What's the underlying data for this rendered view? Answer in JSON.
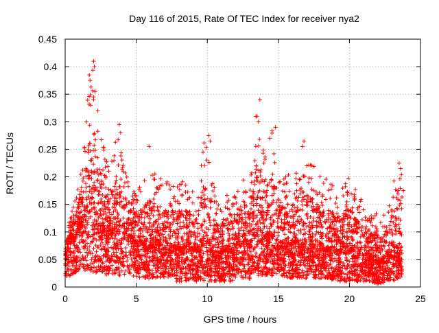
{
  "chart_data": {
    "type": "scatter",
    "title": "Day 116 of 2015, Rate Of TEC Index for receiver nya2",
    "xlabel": "GPS time / hours",
    "ylabel": "ROTI / TECUs",
    "xlim": [
      0,
      25
    ],
    "ylim": [
      0,
      0.45
    ],
    "x_ticks": [
      "0",
      "5",
      "10",
      "15",
      "20",
      "25"
    ],
    "y_ticks": [
      "0",
      "0.05",
      "0.1",
      "0.15",
      "0.2",
      "0.25",
      "0.3",
      "0.35",
      "0.4",
      "0.45"
    ],
    "grid": true,
    "marker": "+",
    "color": "#ff0000",
    "envelope": {
      "x": [
        0.0,
        0.3,
        0.6,
        1.0,
        1.4,
        1.7,
        2.0,
        2.2,
        2.6,
        3.0,
        3.4,
        3.8,
        4.2,
        4.6,
        5.0,
        5.4,
        5.8,
        6.2,
        6.6,
        7.0,
        7.4,
        7.8,
        8.2,
        8.6,
        9.0,
        9.4,
        9.8,
        10.2,
        10.6,
        11.0,
        11.4,
        11.8,
        12.2,
        12.6,
        13.0,
        13.4,
        13.8,
        14.2,
        14.6,
        15.0,
        15.4,
        15.8,
        16.2,
        16.6,
        17.0,
        17.4,
        17.8,
        18.2,
        18.6,
        19.0,
        19.4,
        19.8,
        20.2,
        20.6,
        21.0,
        21.4,
        21.8,
        22.2,
        22.6,
        23.0,
        23.4,
        23.7
      ],
      "upper": [
        0.09,
        0.12,
        0.15,
        0.2,
        0.28,
        0.38,
        0.41,
        0.33,
        0.27,
        0.22,
        0.26,
        0.29,
        0.22,
        0.2,
        0.18,
        0.19,
        0.21,
        0.22,
        0.2,
        0.19,
        0.21,
        0.18,
        0.2,
        0.19,
        0.18,
        0.2,
        0.27,
        0.25,
        0.16,
        0.15,
        0.17,
        0.16,
        0.2,
        0.21,
        0.18,
        0.33,
        0.27,
        0.27,
        0.29,
        0.22,
        0.2,
        0.21,
        0.2,
        0.26,
        0.22,
        0.23,
        0.2,
        0.21,
        0.19,
        0.18,
        0.17,
        0.21,
        0.19,
        0.17,
        0.15,
        0.13,
        0.14,
        0.12,
        0.15,
        0.18,
        0.22,
        0.21
      ],
      "median": [
        0.05,
        0.07,
        0.08,
        0.1,
        0.12,
        0.13,
        0.13,
        0.11,
        0.1,
        0.09,
        0.1,
        0.1,
        0.09,
        0.08,
        0.07,
        0.07,
        0.07,
        0.07,
        0.07,
        0.06,
        0.07,
        0.06,
        0.06,
        0.07,
        0.06,
        0.06,
        0.08,
        0.07,
        0.05,
        0.06,
        0.06,
        0.06,
        0.07,
        0.08,
        0.07,
        0.09,
        0.09,
        0.08,
        0.08,
        0.07,
        0.07,
        0.07,
        0.07,
        0.07,
        0.07,
        0.07,
        0.07,
        0.06,
        0.06,
        0.06,
        0.06,
        0.06,
        0.06,
        0.05,
        0.05,
        0.05,
        0.04,
        0.04,
        0.05,
        0.06,
        0.06,
        0.06
      ],
      "lower": [
        0.02,
        0.02,
        0.025,
        0.03,
        0.03,
        0.03,
        0.025,
        0.025,
        0.025,
        0.02,
        0.02,
        0.02,
        0.02,
        0.02,
        0.015,
        0.015,
        0.015,
        0.015,
        0.015,
        0.015,
        0.015,
        0.01,
        0.01,
        0.01,
        0.01,
        0.01,
        0.01,
        0.01,
        0.01,
        0.01,
        0.01,
        0.01,
        0.015,
        0.015,
        0.015,
        0.02,
        0.02,
        0.02,
        0.02,
        0.02,
        0.02,
        0.015,
        0.015,
        0.015,
        0.015,
        0.015,
        0.015,
        0.015,
        0.015,
        0.01,
        0.01,
        0.01,
        0.01,
        0.01,
        0.01,
        0.01,
        0.005,
        0.005,
        0.01,
        0.01,
        0.015,
        0.015
      ]
    },
    "outliers": [
      {
        "x": 1.7,
        "y": 0.385
      },
      {
        "x": 1.75,
        "y": 0.375
      },
      {
        "x": 2.0,
        "y": 0.41
      },
      {
        "x": 2.05,
        "y": 0.4
      },
      {
        "x": 2.1,
        "y": 0.355
      },
      {
        "x": 2.0,
        "y": 0.345
      },
      {
        "x": 2.3,
        "y": 0.32
      },
      {
        "x": 1.8,
        "y": 0.33
      },
      {
        "x": 3.8,
        "y": 0.295
      },
      {
        "x": 3.9,
        "y": 0.28
      },
      {
        "x": 5.9,
        "y": 0.255
      },
      {
        "x": 10.1,
        "y": 0.275
      },
      {
        "x": 10.2,
        "y": 0.265
      },
      {
        "x": 13.7,
        "y": 0.34
      },
      {
        "x": 13.5,
        "y": 0.31
      },
      {
        "x": 13.6,
        "y": 0.3
      },
      {
        "x": 14.8,
        "y": 0.29
      },
      {
        "x": 14.4,
        "y": 0.27
      },
      {
        "x": 16.8,
        "y": 0.265
      },
      {
        "x": 16.7,
        "y": 0.255
      },
      {
        "x": 23.5,
        "y": 0.225
      },
      {
        "x": 23.6,
        "y": 0.215
      },
      {
        "x": 23.8,
        "y": 0.175
      }
    ]
  }
}
